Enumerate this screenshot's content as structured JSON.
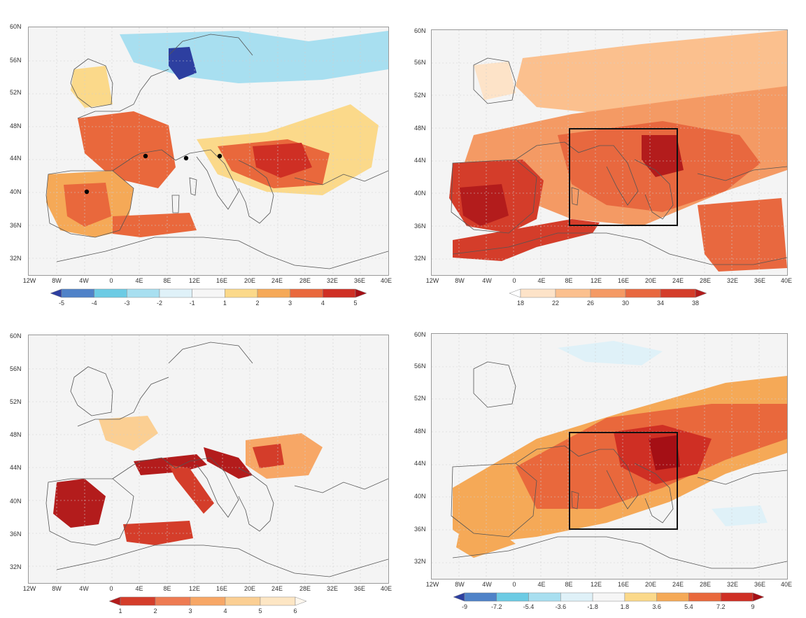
{
  "axes": {
    "lat_labels": [
      "60N",
      "56N",
      "52N",
      "48N",
      "44N",
      "40N",
      "36N",
      "32N"
    ],
    "lon_labels": [
      "12W",
      "8W",
      "4W",
      "0",
      "4E",
      "8E",
      "12E",
      "16E",
      "20E",
      "24E",
      "28E",
      "32E",
      "36E",
      "40E"
    ],
    "lat_range": [
      30,
      60
    ],
    "lon_range": [
      -12,
      40
    ]
  },
  "panels": [
    {
      "id": "top-left",
      "colorbar": {
        "labels": [
          "-5",
          "-4",
          "-3",
          "-2",
          "-1",
          "1",
          "2",
          "3",
          "4",
          "5"
        ],
        "colors": [
          "#2d3fa0",
          "#4f82c8",
          "#6ccbe4",
          "#a8dff0",
          "#dff1f8",
          "#f6f6f6",
          "#fbd98a",
          "#f5a957",
          "#e9683c",
          "#cf2f24",
          "#a50f15"
        ],
        "ends": "both"
      },
      "markers": [
        [
          -3.7,
          40.4
        ],
        [
          4.8,
          44.6
        ],
        [
          10.4,
          44.3
        ],
        [
          15.3,
          44.5
        ]
      ]
    },
    {
      "id": "top-right",
      "colorbar": {
        "labels": [
          "18",
          "22",
          "26",
          "30",
          "34",
          "38"
        ],
        "colors": [
          "#ffffff",
          "#fde3c8",
          "#fbc08e",
          "#f49a64",
          "#e8683f",
          "#d43d2a",
          "#b31c1c"
        ],
        "ends": "both"
      },
      "box": [
        8,
        36,
        24,
        48
      ]
    },
    {
      "id": "bottom-left",
      "colorbar": {
        "labels": [
          "1",
          "2",
          "3",
          "4",
          "5",
          "6"
        ],
        "colors": [
          "#b31c1c",
          "#d43d2a",
          "#ee7b52",
          "#f7a766",
          "#fbcf93",
          "#fde6c4",
          "#fdf7ee"
        ],
        "ends": "both"
      }
    },
    {
      "id": "bottom-right",
      "colorbar": {
        "labels": [
          "-9",
          "-7.2",
          "-5.4",
          "-3.6",
          "-1.8",
          "1.8",
          "3.6",
          "5.4",
          "7.2",
          "9"
        ],
        "colors": [
          "#2d3fa0",
          "#4f82c8",
          "#6ccbe4",
          "#a8dff0",
          "#dff1f8",
          "#f6f6f6",
          "#fbd98a",
          "#f5a957",
          "#e9683c",
          "#cf2f24",
          "#a50f15"
        ],
        "ends": "both"
      },
      "box": [
        8,
        36,
        24,
        48
      ]
    }
  ]
}
